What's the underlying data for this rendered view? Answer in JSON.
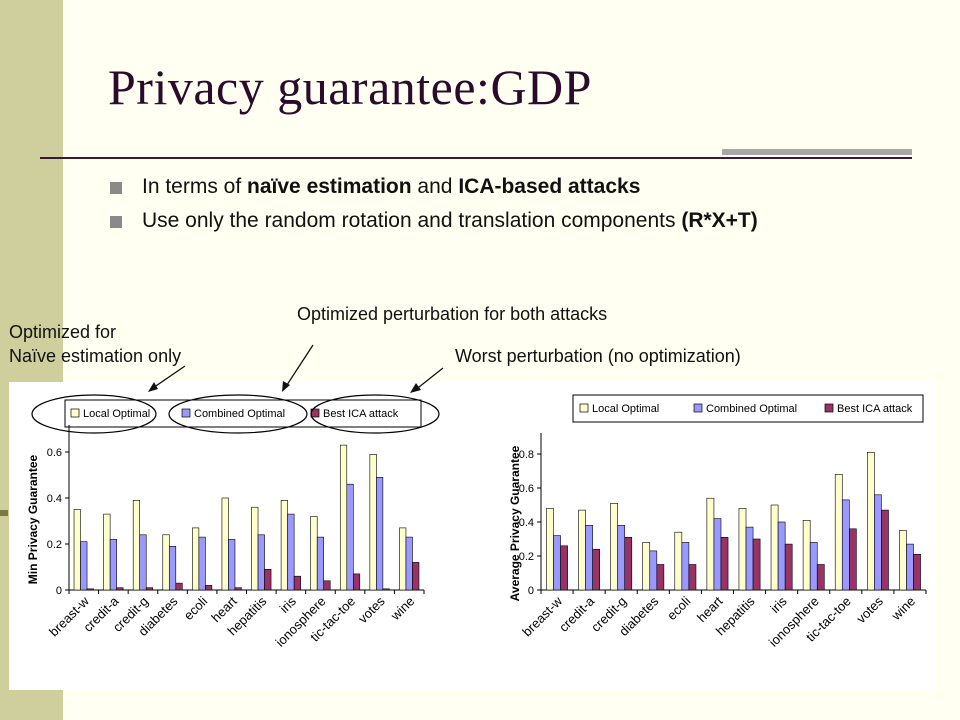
{
  "slide": {
    "title": "Privacy guarantee:GDP",
    "bullets": [
      {
        "parts": [
          {
            "text": "In terms of ",
            "bold": false
          },
          {
            "text": "naïve estimation",
            "bold": true
          },
          {
            "text": " and ",
            "bold": false
          },
          {
            "text": "ICA-based attacks",
            "bold": true
          }
        ]
      },
      {
        "parts": [
          {
            "text": "Use only the random rotation and translation components ",
            "bold": false
          },
          {
            "text": "(R*X+T)",
            "bold": true
          }
        ]
      }
    ],
    "annotations": {
      "optimized_both": "Optimized perturbation for both attacks",
      "naive_line1": "Optimized for",
      "naive_line2": "Naïve estimation only",
      "worst": "Worst perturbation (no optimization)"
    }
  },
  "colors": {
    "series": [
      "#ffffcc",
      "#9999ff",
      "#993366"
    ],
    "background": "#fffff2",
    "left_band": "#cfcf9e",
    "title": "#2c0a2c"
  },
  "chart_data": [
    {
      "type": "bar",
      "categories": [
        "breast-w",
        "credit-a",
        "credit-g",
        "diabetes",
        "ecoli",
        "heart",
        "hepatitis",
        "iris",
        "ionosphere",
        "tic-tac-toe",
        "votes",
        "wine"
      ],
      "ylabel": "Min Privacy Guarantee",
      "ylim": [
        0,
        0.7
      ],
      "yticks": [
        0,
        0.2,
        0.4,
        0.6
      ],
      "ytick_labels": [
        "0",
        "0.2",
        "0.4",
        "0.6"
      ],
      "legend_position": "top",
      "series": [
        {
          "name": "Local Optimal",
          "values": [
            0.35,
            0.33,
            0.39,
            0.24,
            0.27,
            0.4,
            0.36,
            0.39,
            0.32,
            0.63,
            0.59,
            0.27
          ]
        },
        {
          "name": "Combined Optimal",
          "values": [
            0.21,
            0.22,
            0.24,
            0.19,
            0.23,
            0.22,
            0.24,
            0.33,
            0.23,
            0.46,
            0.49,
            0.23
          ]
        },
        {
          "name": "Best ICA attack",
          "values": [
            0.005,
            0.01,
            0.01,
            0.03,
            0.02,
            0.01,
            0.09,
            0.06,
            0.04,
            0.07,
            0.005,
            0.12
          ]
        }
      ]
    },
    {
      "type": "bar",
      "categories": [
        "breast-w",
        "credit-a",
        "credit-g",
        "diabetes",
        "ecoli",
        "heart",
        "hepatitis",
        "iris",
        "ionosphere",
        "tic-tac-toe",
        "votes",
        "wine"
      ],
      "ylabel": "Average Privacy Guarantee",
      "ylim": [
        0,
        0.9
      ],
      "yticks": [
        0,
        0.2,
        0.4,
        0.6,
        0.8
      ],
      "ytick_labels": [
        "0",
        "0.2",
        "0.4",
        "0.6",
        "0.8"
      ],
      "legend_position": "top",
      "series": [
        {
          "name": "Local Optimal",
          "values": [
            0.48,
            0.47,
            0.51,
            0.28,
            0.34,
            0.54,
            0.48,
            0.5,
            0.41,
            0.68,
            0.81,
            0.35
          ]
        },
        {
          "name": "Combined Optimal",
          "values": [
            0.32,
            0.38,
            0.38,
            0.23,
            0.28,
            0.42,
            0.37,
            0.4,
            0.28,
            0.53,
            0.56,
            0.27
          ]
        },
        {
          "name": "Best ICA attack",
          "values": [
            0.26,
            0.24,
            0.31,
            0.15,
            0.15,
            0.31,
            0.3,
            0.27,
            0.15,
            0.36,
            0.47,
            0.21
          ]
        }
      ]
    }
  ]
}
